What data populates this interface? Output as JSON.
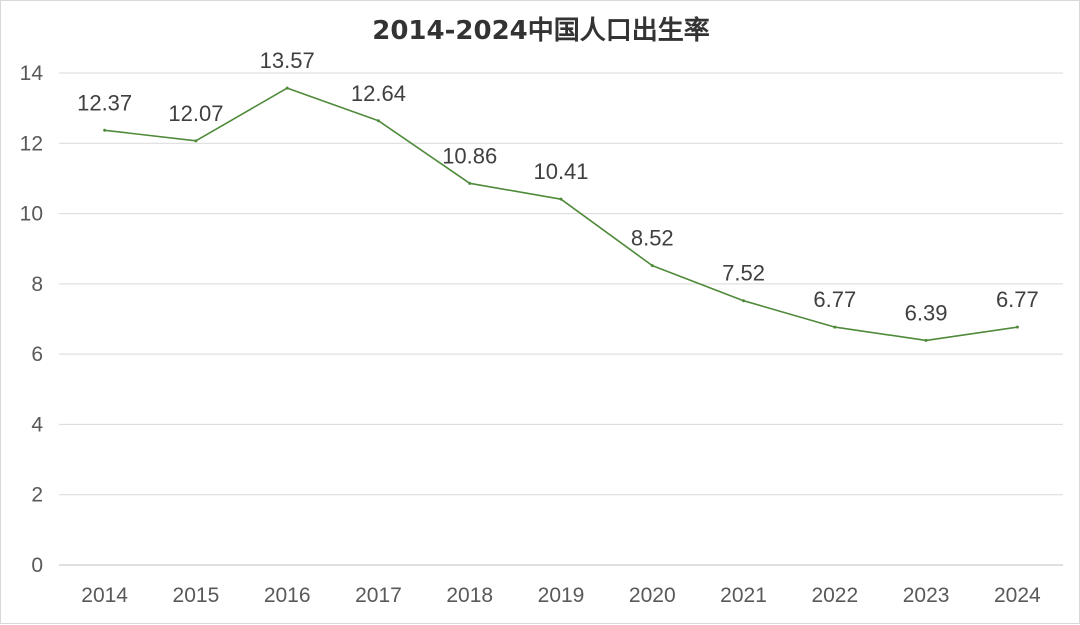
{
  "chart_data": {
    "type": "line",
    "title": "2014-2024中国人口出生率",
    "xlabel": "",
    "ylabel": "",
    "ylim": [
      0,
      14
    ],
    "yticks": [
      0,
      2,
      4,
      6,
      8,
      10,
      12,
      14
    ],
    "categories": [
      "2014",
      "2015",
      "2016",
      "2017",
      "2018",
      "2019",
      "2020",
      "2021",
      "2022",
      "2023",
      "2024"
    ],
    "series": [
      {
        "values": [
          12.37,
          12.07,
          13.57,
          12.64,
          10.86,
          10.41,
          8.52,
          7.52,
          6.77,
          6.39,
          6.77
        ],
        "labels": [
          "12.37",
          "12.07",
          "13.57",
          "12.64",
          "10.86",
          "10.41",
          "8.52",
          "7.52",
          "6.77",
          "6.39",
          "6.77"
        ],
        "color": "#4f8a3a"
      }
    ],
    "grid": true,
    "legend": "none"
  }
}
